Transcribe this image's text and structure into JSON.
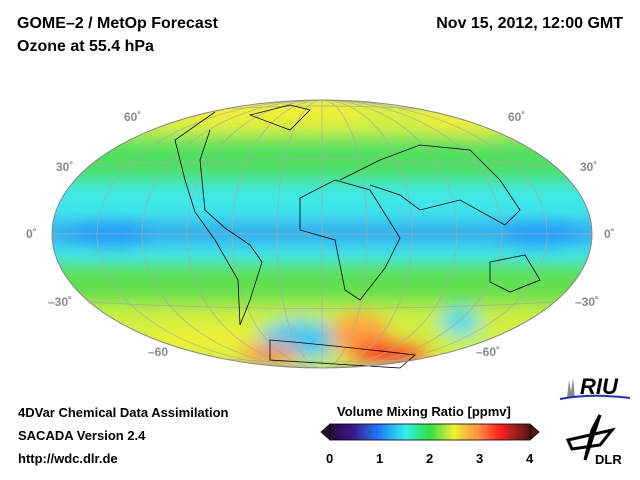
{
  "header": {
    "title_line1": "GOME–2 / MetOp Forecast",
    "title_line2": "Ozone at 55.4 hPa",
    "datetime": "Nov 15, 2012, 12:00 GMT"
  },
  "map": {
    "projection": "hammer-aitoff",
    "lat_labels_left": [
      "60˚",
      "30˚",
      "0˚",
      "–30˚",
      "–60"
    ],
    "lat_labels_right": [
      "60˚",
      "30˚",
      "0˚",
      "–30˚",
      "–60˚"
    ]
  },
  "footer": {
    "line1": "4DVar Chemical Data Assimilation",
    "line2": "SACADA Version 2.4",
    "line3": "http://wdc.dlr.de"
  },
  "colorbar": {
    "title": "Volume Mixing Ratio [ppmv]",
    "ticks": [
      "0",
      "1",
      "2",
      "3",
      "4"
    ],
    "min": 0,
    "max": 4,
    "colors": [
      "#2a0a3a",
      "#3a1890",
      "#2060ff",
      "#20b0ff",
      "#30f0f0",
      "#30e040",
      "#f0f030",
      "#ff9040",
      "#ff2020",
      "#501818"
    ]
  },
  "logos": {
    "riu": "RIU",
    "dlr": "DLR"
  }
}
